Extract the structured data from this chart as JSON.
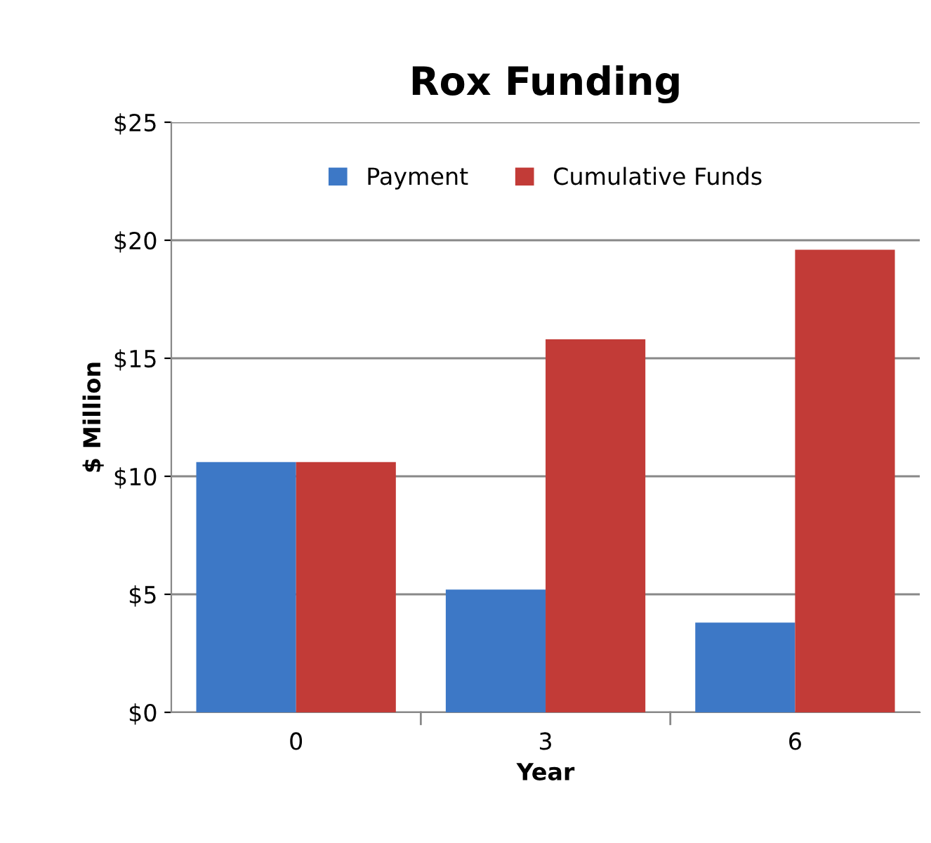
{
  "chart_data": {
    "type": "bar",
    "title": "Rox Funding",
    "xlabel": "Year",
    "ylabel": "$ Million",
    "categories": [
      "0",
      "3",
      "6"
    ],
    "series": [
      {
        "name": "Payment",
        "color": "#3d78c6",
        "values": [
          10.6,
          5.2,
          3.8
        ]
      },
      {
        "name": "Cumulative Funds",
        "color": "#c23b37",
        "values": [
          10.6,
          15.8,
          19.6
        ]
      }
    ],
    "ylim": [
      0,
      25
    ],
    "yticks": [
      {
        "value": 0,
        "label": "$0"
      },
      {
        "value": 5,
        "label": "$5"
      },
      {
        "value": 10,
        "label": "$10"
      },
      {
        "value": 15,
        "label": "$15"
      },
      {
        "value": 20,
        "label": "$20"
      },
      {
        "value": 25,
        "label": "$25"
      }
    ],
    "grid": "y",
    "legend": "top"
  }
}
